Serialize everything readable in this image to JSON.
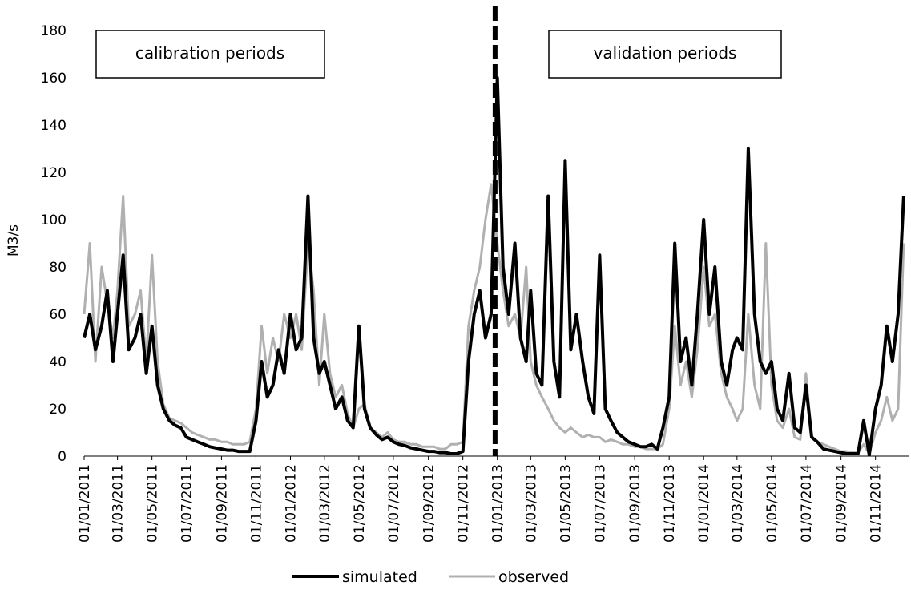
{
  "chart_data": {
    "type": "line",
    "y_label": "M3/s",
    "x": [
      "2011-01-01",
      "2011-01-11",
      "2011-01-21",
      "2011-02-01",
      "2011-02-11",
      "2011-02-21",
      "2011-03-01",
      "2011-03-11",
      "2011-03-21",
      "2011-04-01",
      "2011-04-11",
      "2011-04-21",
      "2011-05-01",
      "2011-05-11",
      "2011-05-21",
      "2011-06-01",
      "2011-06-11",
      "2011-06-21",
      "2011-07-01",
      "2011-07-11",
      "2011-07-21",
      "2011-08-01",
      "2011-08-11",
      "2011-08-21",
      "2011-09-01",
      "2011-09-11",
      "2011-09-21",
      "2011-10-01",
      "2011-10-11",
      "2011-10-21",
      "2011-11-01",
      "2011-11-11",
      "2011-11-21",
      "2011-12-01",
      "2011-12-11",
      "2011-12-21",
      "2012-01-01",
      "2012-01-11",
      "2012-01-21",
      "2012-02-01",
      "2012-02-11",
      "2012-02-21",
      "2012-03-01",
      "2012-03-11",
      "2012-03-21",
      "2012-04-01",
      "2012-04-11",
      "2012-04-21",
      "2012-05-01",
      "2012-05-11",
      "2012-05-21",
      "2012-06-01",
      "2012-06-11",
      "2012-06-21",
      "2012-07-01",
      "2012-07-11",
      "2012-07-21",
      "2012-08-01",
      "2012-08-11",
      "2012-08-21",
      "2012-09-01",
      "2012-09-11",
      "2012-09-21",
      "2012-10-01",
      "2012-10-11",
      "2012-10-21",
      "2012-11-01",
      "2012-11-11",
      "2012-11-21",
      "2012-12-01",
      "2012-12-11",
      "2012-12-21",
      "2013-01-01",
      "2013-01-11",
      "2013-01-21",
      "2013-02-01",
      "2013-02-11",
      "2013-02-21",
      "2013-03-01",
      "2013-03-11",
      "2013-03-21",
      "2013-04-01",
      "2013-04-11",
      "2013-04-21",
      "2013-05-01",
      "2013-05-11",
      "2013-05-21",
      "2013-06-01",
      "2013-06-11",
      "2013-06-21",
      "2013-07-01",
      "2013-07-11",
      "2013-07-21",
      "2013-08-01",
      "2013-08-11",
      "2013-08-21",
      "2013-09-01",
      "2013-09-11",
      "2013-09-21",
      "2013-10-01",
      "2013-10-11",
      "2013-10-21",
      "2013-11-01",
      "2013-11-11",
      "2013-11-21",
      "2013-12-01",
      "2013-12-11",
      "2013-12-21",
      "2014-01-01",
      "2014-01-11",
      "2014-01-21",
      "2014-02-01",
      "2014-02-11",
      "2014-02-21",
      "2014-03-01",
      "2014-03-11",
      "2014-03-21",
      "2014-04-01",
      "2014-04-11",
      "2014-04-21",
      "2014-05-01",
      "2014-05-11",
      "2014-05-21",
      "2014-06-01",
      "2014-06-11",
      "2014-06-21",
      "2014-07-01",
      "2014-07-11",
      "2014-07-21",
      "2014-08-01",
      "2014-08-11",
      "2014-08-21",
      "2014-09-01",
      "2014-09-11",
      "2014-09-21",
      "2014-10-01",
      "2014-10-11",
      "2014-10-21",
      "2014-11-01",
      "2014-11-11",
      "2014-11-21",
      "2014-12-01",
      "2014-12-11",
      "2014-12-21"
    ],
    "series": [
      {
        "name": "simulated",
        "color": "#000000",
        "width": 4,
        "values": [
          50,
          60,
          45,
          55,
          70,
          40,
          60,
          85,
          45,
          50,
          60,
          35,
          55,
          30,
          20,
          15,
          13,
          12,
          8,
          7,
          6,
          5,
          4,
          3.5,
          3,
          2.5,
          2.5,
          2,
          2,
          2,
          15,
          40,
          25,
          30,
          45,
          35,
          60,
          45,
          50,
          110,
          50,
          35,
          40,
          30,
          20,
          25,
          15,
          12,
          55,
          20,
          12,
          9,
          7,
          8,
          6,
          5,
          4.5,
          3.5,
          3,
          2.5,
          2,
          2,
          1.5,
          1.5,
          1,
          1,
          2,
          40,
          60,
          70,
          50,
          60,
          160,
          80,
          60,
          90,
          50,
          40,
          70,
          35,
          30,
          110,
          40,
          25,
          125,
          45,
          60,
          40,
          25,
          18,
          85,
          20,
          15,
          10,
          8,
          6,
          5,
          4,
          4,
          5,
          3,
          12,
          25,
          90,
          40,
          50,
          30,
          60,
          100,
          60,
          80,
          40,
          30,
          45,
          50,
          45,
          130,
          60,
          40,
          35,
          40,
          20,
          15,
          35,
          12,
          10,
          30,
          8,
          6,
          3,
          2.5,
          2,
          1.5,
          1,
          1,
          1,
          15,
          0.5,
          20,
          30,
          55,
          40,
          60,
          110
        ]
      },
      {
        "name": "observed",
        "color": "#b0b0b0",
        "width": 3,
        "values": [
          60,
          90,
          40,
          80,
          65,
          50,
          70,
          110,
          55,
          60,
          70,
          40,
          85,
          40,
          22,
          16,
          15,
          14,
          12,
          10,
          9,
          8,
          7,
          7,
          6,
          6,
          5,
          5,
          5,
          6,
          20,
          55,
          35,
          50,
          40,
          60,
          50,
          60,
          45,
          90,
          70,
          30,
          60,
          35,
          25,
          30,
          18,
          12,
          20,
          22,
          12,
          10,
          8,
          10,
          7,
          6,
          6,
          5,
          5,
          4,
          4,
          4,
          3,
          3,
          5,
          5,
          6,
          55,
          70,
          80,
          100,
          115,
          90,
          70,
          55,
          60,
          50,
          80,
          40,
          30,
          25,
          20,
          15,
          12,
          10,
          12,
          10,
          8,
          9,
          8,
          8,
          6,
          7,
          6,
          5,
          5,
          4,
          4,
          3,
          3,
          3,
          5,
          20,
          55,
          30,
          40,
          25,
          45,
          80,
          55,
          60,
          35,
          25,
          20,
          15,
          20,
          60,
          30,
          20,
          90,
          30,
          15,
          12,
          20,
          8,
          7,
          35,
          8,
          6,
          5,
          4,
          3,
          2,
          2,
          1.5,
          1.5,
          5,
          1,
          10,
          15,
          25,
          15,
          20,
          90
        ]
      }
    ],
    "xlim": [
      "2011-01-01",
      "2014-12-31"
    ],
    "xticks": [
      {
        "value": "2011-01-01",
        "label": "01/01/2011"
      },
      {
        "value": "2011-03-01",
        "label": "01/03/2011"
      },
      {
        "value": "2011-05-01",
        "label": "01/05/2011"
      },
      {
        "value": "2011-07-01",
        "label": "01/07/2011"
      },
      {
        "value": "2011-09-01",
        "label": "01/09/2011"
      },
      {
        "value": "2011-11-01",
        "label": "01/11/2011"
      },
      {
        "value": "2012-01-01",
        "label": "01/01/2012"
      },
      {
        "value": "2012-03-01",
        "label": "01/03/2012"
      },
      {
        "value": "2012-05-01",
        "label": "01/05/2012"
      },
      {
        "value": "2012-07-01",
        "label": "01/07/2012"
      },
      {
        "value": "2012-09-01",
        "label": "01/09/2012"
      },
      {
        "value": "2012-11-01",
        "label": "01/11/2012"
      },
      {
        "value": "2013-01-01",
        "label": "01/01/2013"
      },
      {
        "value": "2013-03-01",
        "label": "01/03/2013"
      },
      {
        "value": "2013-05-01",
        "label": "01/05/2013"
      },
      {
        "value": "2013-07-01",
        "label": "01/07/2013"
      },
      {
        "value": "2013-09-01",
        "label": "01/09/2013"
      },
      {
        "value": "2013-11-01",
        "label": "01/11/2013"
      },
      {
        "value": "2014-01-01",
        "label": "01/01/2014"
      },
      {
        "value": "2014-03-01",
        "label": "01/03/2014"
      },
      {
        "value": "2014-05-01",
        "label": "01/05/2014"
      },
      {
        "value": "2014-07-01",
        "label": "01/07/2014"
      },
      {
        "value": "2014-09-01",
        "label": "01/09/2014"
      },
      {
        "value": "2014-11-01",
        "label": "01/11/2014"
      }
    ],
    "ylim": [
      0,
      180
    ],
    "yticks": [
      0,
      20,
      40,
      60,
      80,
      100,
      120,
      140,
      160,
      180
    ],
    "split_date": "2012-12-28",
    "annotations": [
      "calibration periods",
      "validation periods"
    ],
    "grid": false
  }
}
